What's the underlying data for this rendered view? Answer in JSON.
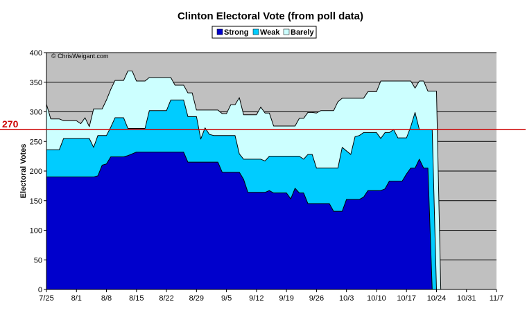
{
  "chart_data": {
    "type": "area",
    "title": "Clinton Electoral Vote (from poll data)",
    "ylabel": "Electoral Votes",
    "xlabel": "",
    "credit": "© ChrisWeigant.com",
    "ylim": [
      0,
      400
    ],
    "yticks": [
      0,
      50,
      100,
      150,
      200,
      250,
      300,
      350,
      400
    ],
    "xlim": [
      0,
      105
    ],
    "xtick_labels": [
      "7/25",
      "8/1",
      "8/8",
      "8/15",
      "8/22",
      "8/29",
      "9/5",
      "9/12",
      "9/19",
      "9/26",
      "10/3",
      "10/10",
      "10/17",
      "10/24",
      "10/31",
      "11/7"
    ],
    "xtick_positions": [
      0,
      7,
      14,
      21,
      28,
      35,
      42,
      49,
      56,
      63,
      70,
      77,
      84,
      91,
      98,
      105
    ],
    "reference_line": {
      "value": 270,
      "label": "270",
      "color": "#cc0000"
    },
    "stacked": true,
    "grid": true,
    "legend_position": "top-center",
    "colors": {
      "plot_bg": "#c0c0c0",
      "strong": "#0000cc",
      "weak": "#00ccff",
      "barely": "#ccffff"
    },
    "x": [
      0,
      1,
      2,
      3,
      4,
      5,
      6,
      7,
      8,
      9,
      10,
      11,
      12,
      13,
      14,
      15,
      16,
      17,
      18,
      19,
      20,
      21,
      22,
      23,
      24,
      25,
      26,
      27,
      28,
      29,
      30,
      31,
      32,
      33,
      34,
      35,
      36,
      37,
      38,
      39,
      40,
      41,
      42,
      43,
      44,
      45,
      46,
      47,
      48,
      49,
      50,
      51,
      52,
      53,
      54,
      55,
      56,
      57,
      58,
      59,
      60,
      61,
      62,
      63,
      64,
      65,
      66,
      67,
      68,
      69,
      70,
      71,
      72,
      73,
      74,
      75,
      76,
      77,
      78,
      79,
      80,
      81,
      82,
      83,
      84,
      85,
      86,
      87,
      88,
      89,
      90,
      91,
      92
    ],
    "series": [
      {
        "name": "Strong",
        "color": "#0000cc",
        "values": [
          190,
          190,
          190,
          190,
          190,
          190,
          190,
          190,
          190,
          190,
          190,
          190,
          192,
          210,
          212,
          224,
          224,
          224,
          224,
          226,
          229,
          232,
          232,
          232,
          232,
          232,
          232,
          232,
          232,
          232,
          232,
          232,
          232,
          215,
          215,
          215,
          215,
          215,
          215,
          215,
          215,
          198,
          198,
          198,
          198,
          198,
          186,
          164,
          164,
          164,
          164,
          164,
          167,
          163,
          163,
          163,
          163,
          153,
          171,
          163,
          163,
          145,
          145,
          145,
          145,
          145,
          145,
          132,
          132,
          132,
          152,
          152,
          152,
          152,
          156,
          167,
          167,
          167,
          167,
          170,
          183,
          183,
          183,
          183,
          195,
          205,
          205,
          220,
          205,
          205,
          0,
          0,
          0
        ]
      },
      {
        "name": "Weak",
        "color": "#00ccff",
        "values": [
          236,
          236,
          236,
          236,
          255,
          255,
          255,
          255,
          255,
          255,
          255,
          240,
          260,
          260,
          260,
          274,
          290,
          290,
          290,
          272,
          272,
          272,
          272,
          272,
          302,
          302,
          302,
          302,
          302,
          320,
          320,
          320,
          320,
          292,
          292,
          292,
          254,
          273,
          262,
          260,
          260,
          260,
          260,
          260,
          260,
          229,
          220,
          220,
          220,
          220,
          220,
          217,
          225,
          225,
          225,
          225,
          225,
          225,
          225,
          225,
          220,
          228,
          228,
          205,
          205,
          205,
          205,
          205,
          205,
          240,
          234,
          228,
          258,
          260,
          265,
          265,
          265,
          265,
          255,
          265,
          265,
          270,
          256,
          256,
          256,
          275,
          299,
          270,
          270,
          270,
          270,
          0,
          0
        ]
      },
      {
        "name": "Barely",
        "color": "#ccffff",
        "values": [
          313,
          288,
          288,
          288,
          285,
          285,
          285,
          285,
          280,
          290,
          275,
          305,
          305,
          305,
          320,
          338,
          353,
          353,
          353,
          369,
          369,
          352,
          352,
          352,
          358,
          358,
          358,
          358,
          358,
          358,
          345,
          345,
          345,
          332,
          332,
          303,
          303,
          303,
          303,
          303,
          303,
          297,
          297,
          312,
          312,
          324,
          295,
          295,
          295,
          295,
          308,
          298,
          298,
          276,
          276,
          276,
          276,
          276,
          276,
          289,
          289,
          299,
          299,
          298,
          302,
          302,
          302,
          302,
          317,
          323,
          323,
          323,
          323,
          323,
          323,
          334,
          334,
          334,
          352,
          352,
          352,
          352,
          352,
          352,
          352,
          352,
          340,
          352,
          352,
          335,
          335,
          335,
          0
        ]
      }
    ]
  }
}
